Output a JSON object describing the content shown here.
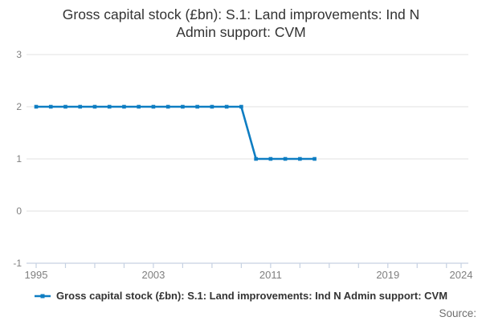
{
  "title": {
    "full": "Gross capital stock (£bn): S.1: Land improvements: Ind N Admin support: CVM",
    "lines": [
      "Gross capital stock (£bn): S.1: Land improvements: Ind N",
      "Admin support: CVM"
    ]
  },
  "legend": {
    "label": "Gross capital stock (£bn): S.1: Land improvements: Ind N Admin support: CVM",
    "marker": "line-with-square-marker"
  },
  "source_label": "Source:",
  "colors": {
    "line": "#0e7dc2",
    "grid": "#e8e8e8",
    "axis": "#c6d1e2",
    "tick_label": "#7f7f7f",
    "title_text": "#333333",
    "legend_text": "#333333",
    "source_text": "#6e6e6e"
  },
  "chart_data": {
    "type": "line",
    "title": "Gross capital stock (£bn): S.1: Land improvements: Ind N Admin support: CVM",
    "series": [
      {
        "name": "Gross capital stock (£bn): S.1: Land improvements: Ind N Admin support: CVM",
        "x": [
          1995,
          1996,
          1997,
          1998,
          1999,
          2000,
          2001,
          2002,
          2003,
          2004,
          2005,
          2006,
          2007,
          2008,
          2009,
          2010,
          2011,
          2012,
          2013,
          2014
        ],
        "values": [
          2,
          2,
          2,
          2,
          2,
          2,
          2,
          2,
          2,
          2,
          2,
          2,
          2,
          2,
          2,
          1,
          1,
          1,
          1,
          1
        ]
      }
    ],
    "xlabel": "",
    "ylabel": "",
    "xlim": [
      1995,
      2024
    ],
    "ylim": [
      -1,
      3
    ],
    "yticks": [
      3,
      2,
      1,
      0,
      -1
    ],
    "xticks_minor": [
      1995,
      1997,
      1999,
      2001,
      2003,
      2005,
      2007,
      2009,
      2011,
      2013,
      2015,
      2017,
      2019,
      2021,
      2023,
      2024
    ],
    "xtick_labels": [
      1995,
      2003,
      2011,
      2019,
      2024
    ],
    "grid": "horizontal",
    "legend_position": "bottom",
    "marker": "square"
  }
}
